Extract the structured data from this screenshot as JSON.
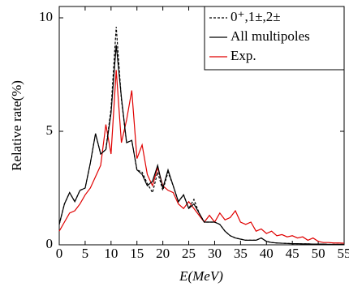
{
  "chart_data": {
    "type": "line",
    "x_label": "E(MeV)",
    "y_label": "Relative rate(%)",
    "x": [
      0,
      1,
      2,
      3,
      4,
      5,
      6,
      7,
      8,
      9,
      10,
      11,
      12,
      13,
      14,
      15,
      16,
      17,
      18,
      19,
      20,
      21,
      22,
      23,
      24,
      25,
      26,
      27,
      28,
      29,
      30,
      31,
      32,
      33,
      34,
      35,
      36,
      37,
      38,
      39,
      40,
      41,
      42,
      43,
      44,
      45,
      46,
      47,
      48,
      49,
      50,
      51,
      52,
      53,
      54,
      55
    ],
    "series": [
      {
        "name": "0⁺,1±,2±",
        "color": "#000000",
        "dashed": true,
        "values": [
          0.9,
          1.8,
          2.3,
          1.9,
          2.4,
          2.5,
          3.6,
          4.9,
          4.0,
          4.2,
          6.0,
          9.6,
          6.4,
          4.5,
          4.6,
          3.3,
          3.2,
          2.7,
          2.3,
          3.2,
          2.4,
          3.2,
          2.6,
          1.9,
          2.2,
          1.6,
          2.0,
          1.4,
          1.0,
          1.0,
          1.0,
          0.9,
          0.6,
          0.4,
          0.3,
          0.25,
          0.2,
          0.2,
          0.2,
          0.3,
          0.15,
          0.1,
          0.08,
          0.07,
          0.06,
          0.05,
          0.05,
          0.04,
          0.04,
          0.03,
          0.03,
          0.03,
          0.02,
          0.02,
          0.02,
          0.02
        ]
      },
      {
        "name": "All multipoles",
        "color": "#000000",
        "dashed": false,
        "values": [
          0.9,
          1.8,
          2.3,
          1.9,
          2.4,
          2.5,
          3.6,
          4.9,
          4.0,
          4.2,
          5.8,
          8.8,
          6.5,
          4.5,
          4.6,
          3.3,
          3.1,
          2.6,
          2.8,
          3.5,
          2.5,
          3.3,
          2.6,
          1.9,
          2.2,
          1.6,
          1.8,
          1.4,
          1.0,
          1.0,
          1.0,
          0.9,
          0.6,
          0.4,
          0.3,
          0.25,
          0.2,
          0.2,
          0.2,
          0.3,
          0.15,
          0.1,
          0.08,
          0.07,
          0.06,
          0.05,
          0.05,
          0.04,
          0.04,
          0.03,
          0.03,
          0.03,
          0.02,
          0.02,
          0.02,
          0.02
        ]
      },
      {
        "name": "Exp.",
        "color": "#e00000",
        "dashed": false,
        "values": [
          0.6,
          1.0,
          1.4,
          1.5,
          1.8,
          2.2,
          2.5,
          3.0,
          3.5,
          5.3,
          4.0,
          7.7,
          4.5,
          5.5,
          6.8,
          3.8,
          4.4,
          3.1,
          2.6,
          3.4,
          2.6,
          2.4,
          2.3,
          1.8,
          1.6,
          1.9,
          1.6,
          1.3,
          1.0,
          1.3,
          1.0,
          1.4,
          1.1,
          1.2,
          1.5,
          1.0,
          0.9,
          1.0,
          0.6,
          0.7,
          0.5,
          0.6,
          0.4,
          0.45,
          0.35,
          0.4,
          0.3,
          0.35,
          0.2,
          0.3,
          0.15,
          0.1,
          0.1,
          0.08,
          0.08,
          0.07
        ]
      }
    ],
    "xlim": [
      0,
      55
    ],
    "xticks": [
      0,
      5,
      10,
      15,
      20,
      25,
      30,
      35,
      40,
      45,
      50,
      55
    ],
    "ylim": [
      0,
      10.5
    ],
    "yticks": [
      0,
      5,
      10
    ],
    "legend": "upper right"
  }
}
